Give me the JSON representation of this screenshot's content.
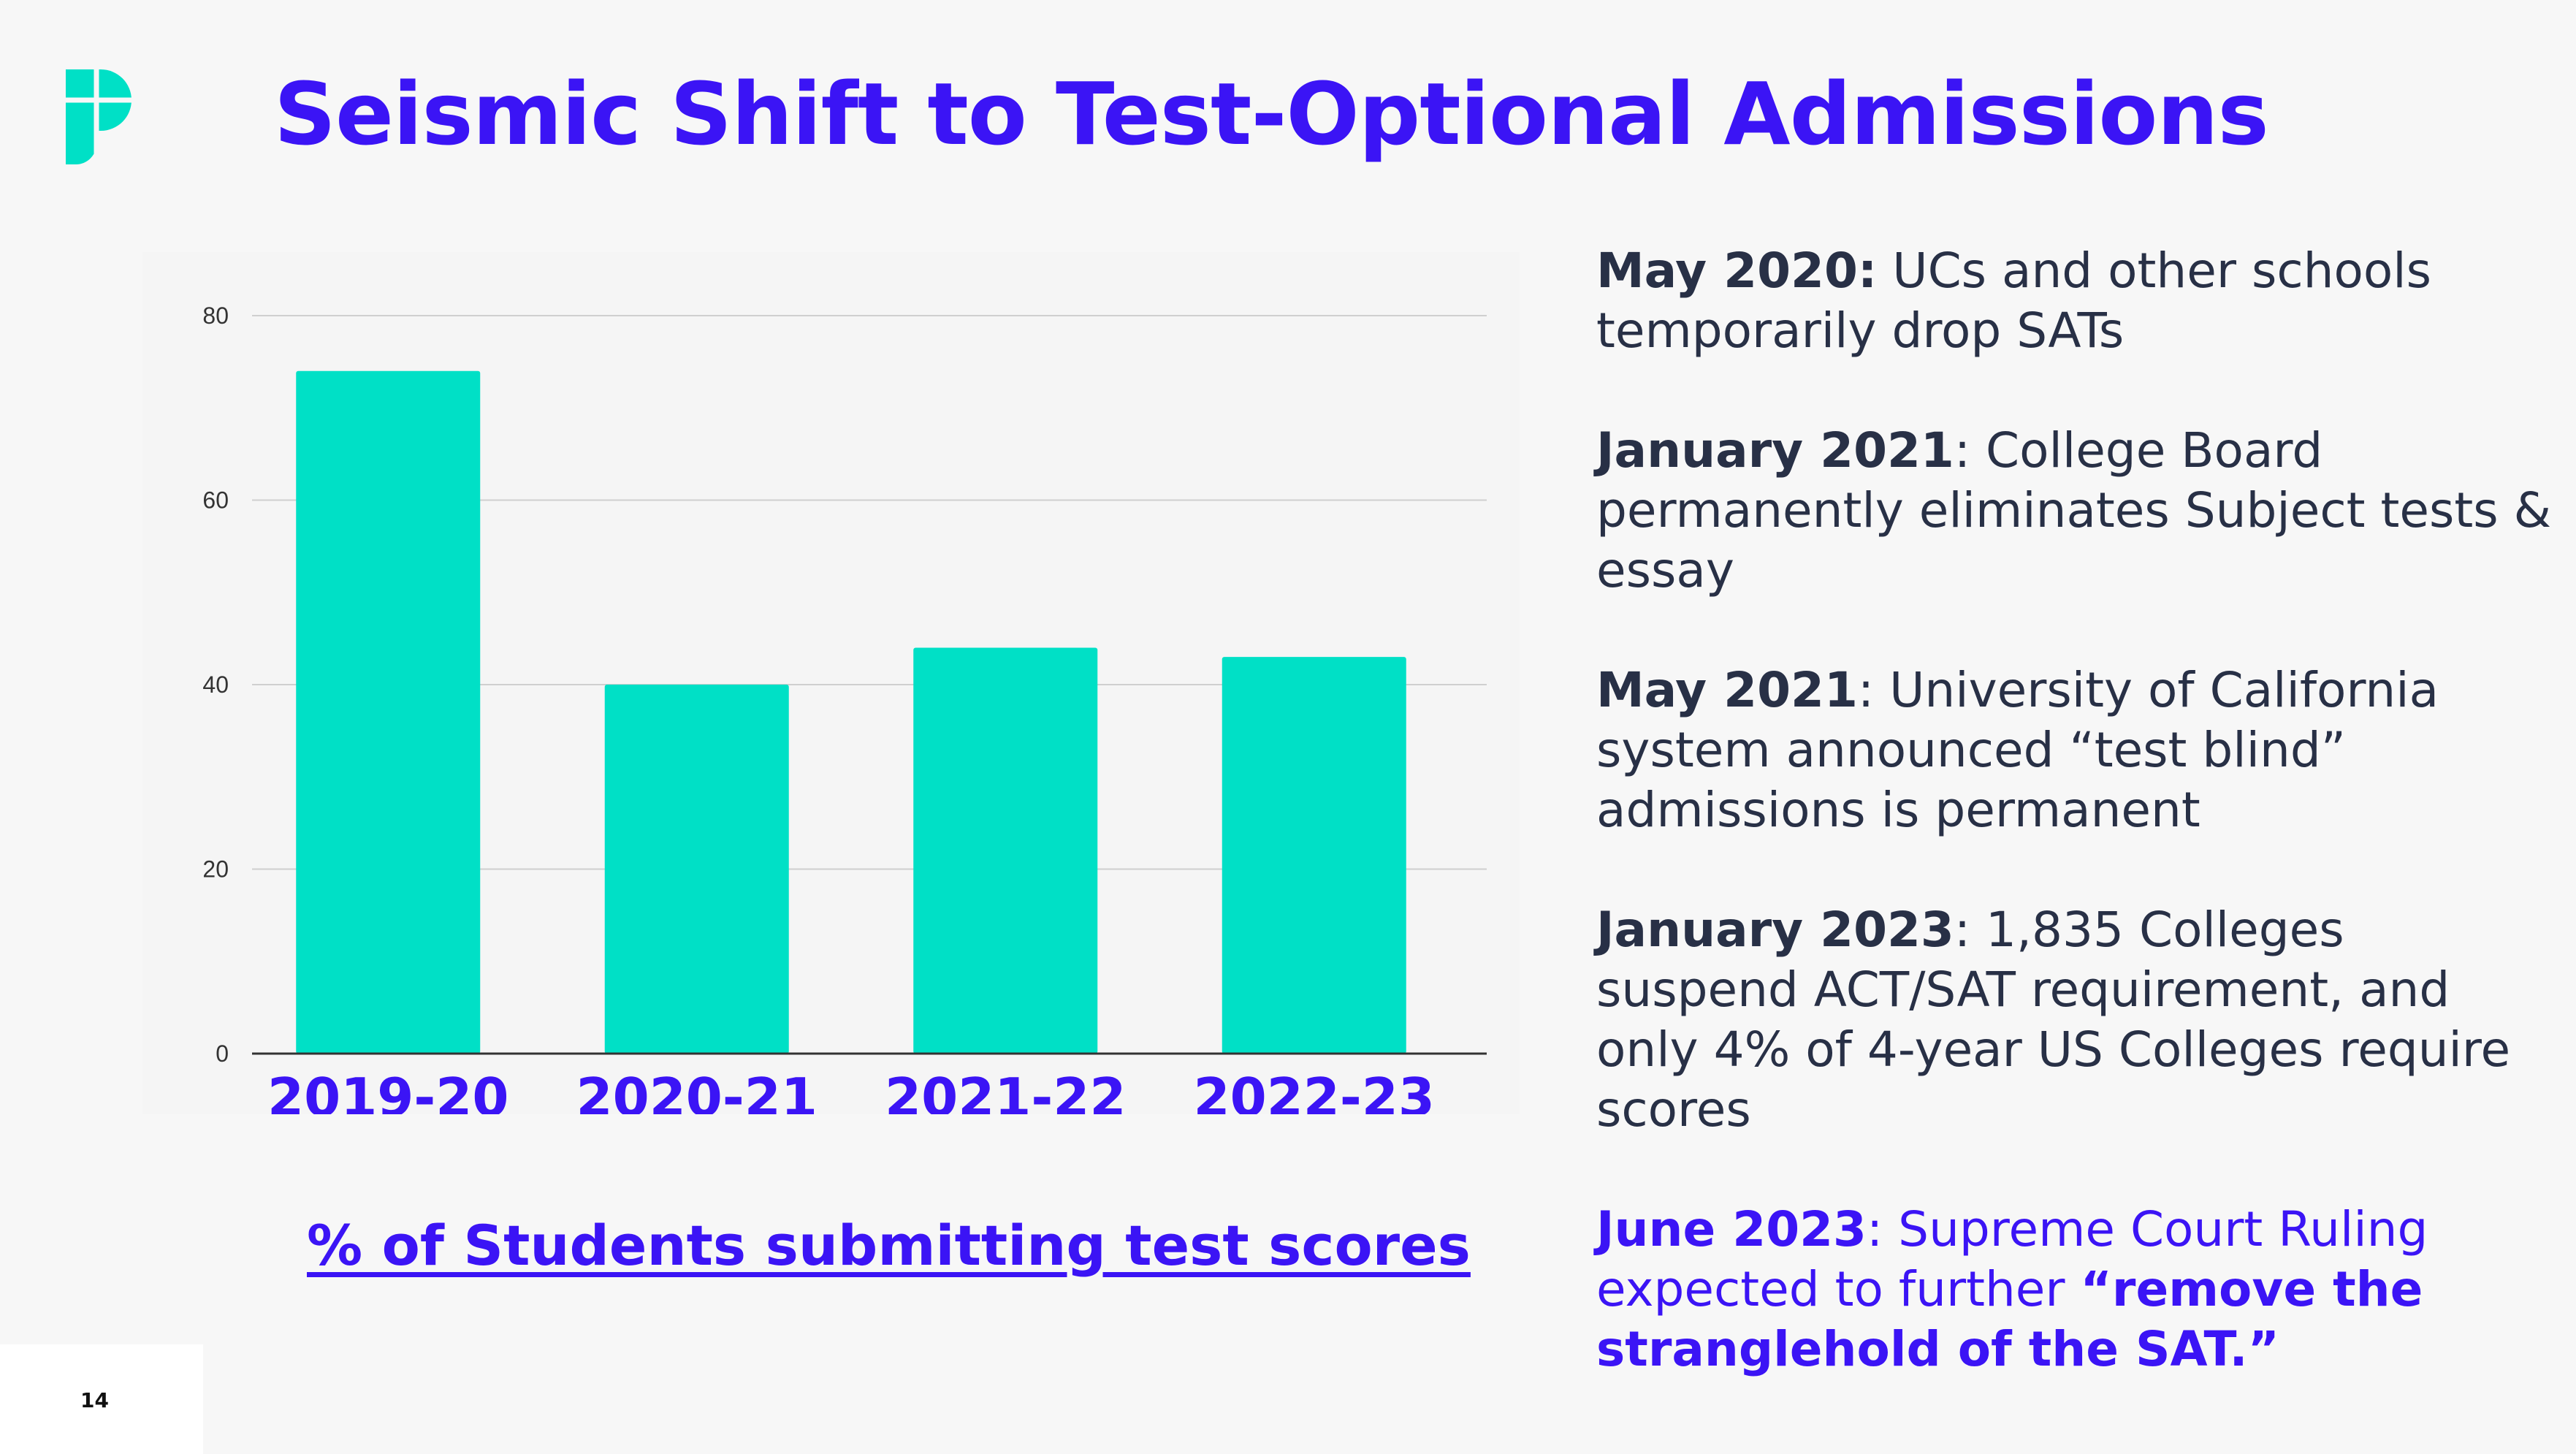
{
  "slide": {
    "title": "Seismic Shift to Test-Optional Admissions",
    "page_number": "14",
    "caption": "% of Students submitting test scores"
  },
  "colors": {
    "accent": "#3b14f5",
    "bar": "#00e0c6",
    "logo": "#00e0c6",
    "text": "#283046"
  },
  "logo": {
    "icon": "p-logo-icon"
  },
  "chart_data": {
    "type": "bar",
    "categories": [
      "2019-20",
      "2020-21",
      "2021-22",
      "2022-23"
    ],
    "values": [
      74,
      40,
      44,
      43
    ],
    "yticks": [
      "0",
      "20",
      "40",
      "60",
      "80"
    ],
    "ylim": [
      0,
      80
    ],
    "grid": true,
    "legend": "none"
  },
  "timeline": [
    {
      "date": "May 2020:",
      "text": " UCs and other schools temporarily drop SATs"
    },
    {
      "date": "January 2021",
      "text": ": College Board permanently eliminates Subject tests & essay"
    },
    {
      "date": "May 2021",
      "text": ": University of California system announced “test blind” admissions is permanent"
    },
    {
      "date": "January 2023",
      "text": ": 1,835 Colleges suspend ACT/SAT requirement, and only 4% of 4-year US Colleges require scores"
    },
    {
      "date": "June 2023",
      "text": ": Supreme Court Ruling expected to further ",
      "emphasis": "“remove the stranglehold of the SAT.”"
    }
  ]
}
